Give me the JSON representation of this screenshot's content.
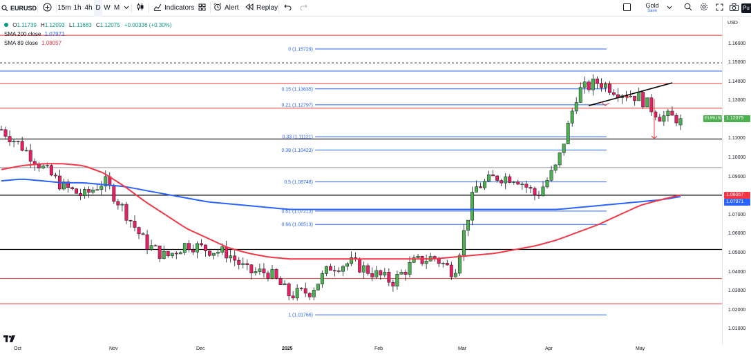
{
  "toolbar": {
    "symbol": "EURUSD",
    "intervals": [
      "15m",
      "1h",
      "4h",
      "D",
      "W",
      "M"
    ],
    "active_interval": "D",
    "indicators_label": "Indicators",
    "alert_label": "Alert",
    "replay_label": "Replay",
    "layout_name": "Gold",
    "layout_save": "Save",
    "publish_label": "Pu"
  },
  "legend": {
    "ohlc": {
      "o_label": "O",
      "o_value": "1.11739",
      "h_label": "H",
      "h_value": "1.12093",
      "l_label": "L",
      "l_value": "1.11683",
      "c_label": "C",
      "c_value": "1.12075",
      "change": "+0.00336 (+0.30%)"
    },
    "sma200": {
      "label": "SMA 200 close",
      "value": "1.07971"
    },
    "sma89": {
      "label": "SMA 89 close",
      "value": "1.08057"
    }
  },
  "price_axis": {
    "currency": "USD",
    "ticks": [
      "1.16000",
      "1.15000",
      "1.14000",
      "1.13000",
      "1.12000",
      "1.11000",
      "1.10000",
      "1.09000",
      "1.08000",
      "1.07000",
      "1.06000",
      "1.05000",
      "1.04000",
      "1.03000",
      "1.02000",
      "1.01000"
    ],
    "current_tag": {
      "symbol": "EURUSD",
      "value": "1.12075"
    },
    "sma89_tag": "1.08057",
    "sma200_tag": "1.07971"
  },
  "time_axis": [
    "Oct",
    "Nov",
    "Dec",
    "2025",
    "Feb",
    "Mar",
    "Apr",
    "May"
  ],
  "fib_levels": [
    {
      "label": "0 (1.15729)"
    },
    {
      "label": "0.15 (1.13635)"
    },
    {
      "label": "0.21 (1.12797)"
    },
    {
      "label": "0.33 (1.11121)"
    },
    {
      "label": "0.38 (1.10423)"
    },
    {
      "label": "0.5 (1.08748)"
    },
    {
      "label": "0.61 (1.07213)"
    },
    {
      "label": "0.66 (1.06513)"
    },
    {
      "label": "1 (1.01766)"
    }
  ],
  "colors": {
    "up": "#089981",
    "down": "#f23645",
    "candle_up_body": "#4caf50",
    "candle_down_body": "#e91e63",
    "sma200": "#2962ff",
    "sma89": "#f23645",
    "fib": "#2962ff",
    "hline_red": "#e53935",
    "hline_black": "#000000",
    "current_tag": "#4caf50"
  },
  "chart_data": {
    "type": "candlestick",
    "symbol": "EURUSD",
    "ylim": [
      1.008,
      1.167
    ],
    "x": [
      "2024-09-25",
      "2024-10-01",
      "2024-10-08",
      "2024-10-15",
      "2024-10-22",
      "2024-10-29",
      "2024-11-05",
      "2024-11-12",
      "2024-11-19",
      "2024-11-26",
      "2024-12-03",
      "2024-12-10",
      "2024-12-17",
      "2024-12-24",
      "2024-12-31",
      "2025-01-07",
      "2025-01-13",
      "2025-01-20",
      "2025-01-27",
      "2025-02-03",
      "2025-02-10",
      "2025-02-17",
      "2025-02-24",
      "2025-03-03",
      "2025-03-10",
      "2025-03-17",
      "2025-03-24",
      "2025-03-31",
      "2025-04-07",
      "2025-04-14",
      "2025-04-21",
      "2025-04-28",
      "2025-05-05",
      "2025-05-12"
    ],
    "close": [
      1.115,
      1.106,
      1.095,
      1.085,
      1.08,
      1.088,
      1.072,
      1.055,
      1.048,
      1.055,
      1.052,
      1.05,
      1.04,
      1.04,
      1.028,
      1.03,
      1.043,
      1.045,
      1.04,
      1.035,
      1.045,
      1.048,
      1.04,
      1.084,
      1.09,
      1.09,
      1.08,
      1.096,
      1.135,
      1.14,
      1.135,
      1.132,
      1.122,
      1.1208
    ],
    "sma200": [
      1.088,
      1.089,
      1.088,
      1.087,
      1.087,
      1.086,
      1.085,
      1.083,
      1.081,
      1.079,
      1.077,
      1.076,
      1.075,
      1.074,
      1.073,
      1.073,
      1.073,
      1.073,
      1.073,
      1.073,
      1.073,
      1.073,
      1.073,
      1.073,
      1.073,
      1.073,
      1.073,
      1.073,
      1.074,
      1.075,
      1.076,
      1.077,
      1.078,
      1.0797
    ],
    "sma89": [
      1.094,
      1.096,
      1.097,
      1.097,
      1.096,
      1.092,
      1.085,
      1.077,
      1.07,
      1.063,
      1.058,
      1.053,
      1.05,
      1.048,
      1.047,
      1.047,
      1.047,
      1.047,
      1.047,
      1.047,
      1.047,
      1.047,
      1.048,
      1.049,
      1.05,
      1.052,
      1.054,
      1.057,
      1.061,
      1.065,
      1.07,
      1.075,
      1.078,
      1.0806
    ],
    "fibonacci": [
      {
        "ratio": 0,
        "price": 1.15729
      },
      {
        "ratio": 0.15,
        "price": 1.13635
      },
      {
        "ratio": 0.21,
        "price": 1.12797
      },
      {
        "ratio": 0.33,
        "price": 1.11121
      },
      {
        "ratio": 0.38,
        "price": 1.10423
      },
      {
        "ratio": 0.5,
        "price": 1.08748
      },
      {
        "ratio": 0.61,
        "price": 1.07213
      },
      {
        "ratio": 0.66,
        "price": 1.06513
      },
      {
        "ratio": 1,
        "price": 1.01766
      }
    ],
    "horizontal_lines": [
      {
        "price": 1.1645,
        "color": "red"
      },
      {
        "price": 1.15,
        "color": "black-dashed"
      },
      {
        "price": 1.1457,
        "color": "blue"
      },
      {
        "price": 1.1392,
        "color": "red"
      },
      {
        "price": 1.1262,
        "color": "red"
      },
      {
        "price": 1.11,
        "color": "black"
      },
      {
        "price": 1.095,
        "color": "gray"
      },
      {
        "price": 1.0805,
        "color": "black"
      },
      {
        "price": 1.052,
        "color": "black"
      },
      {
        "price": 1.0367,
        "color": "red"
      },
      {
        "price": 1.0235,
        "color": "red"
      }
    ],
    "ylabel": "USD"
  }
}
